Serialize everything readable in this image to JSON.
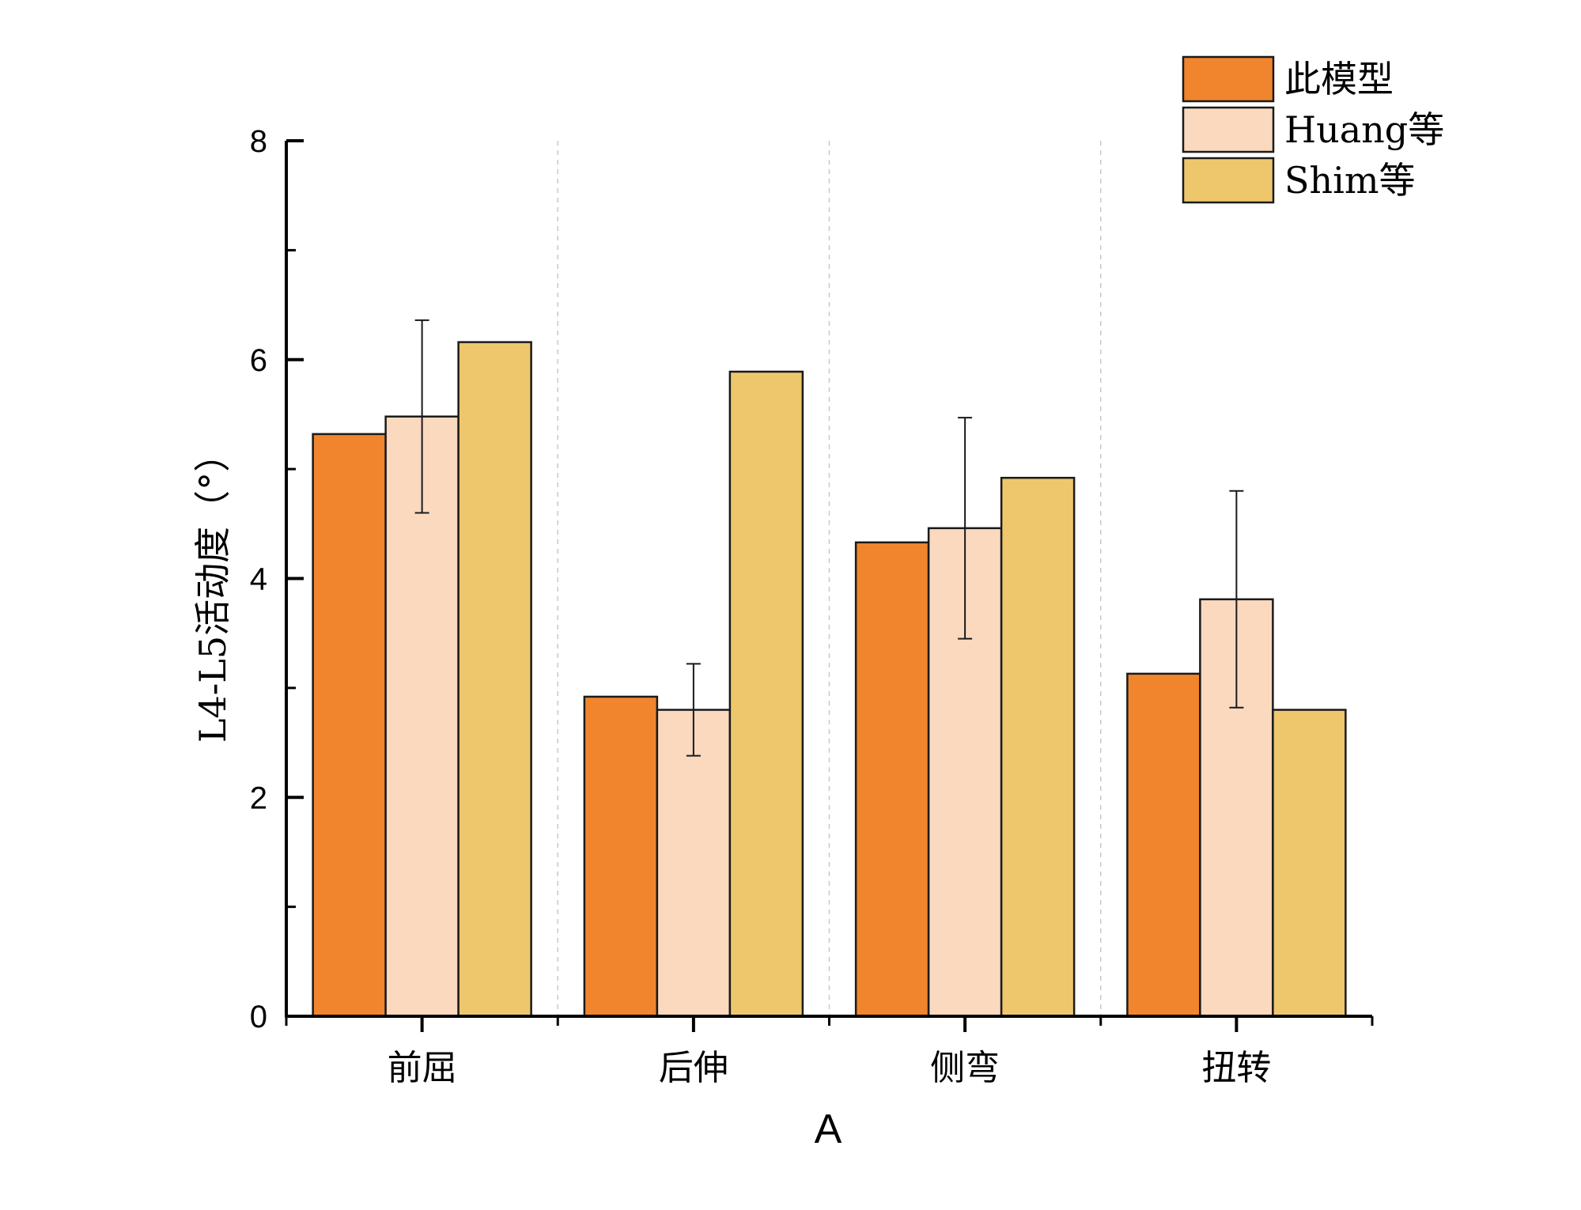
{
  "chart_data": {
    "type": "bar",
    "title": "",
    "xlabel": "A",
    "ylabel": "L4-L5活动度（°）",
    "ylim": [
      0,
      8
    ],
    "yticks": [
      0,
      2,
      4,
      6,
      8
    ],
    "categories": [
      "前屈",
      "后伸",
      "侧弯",
      "扭转"
    ],
    "legend_position": "top-right",
    "grid": false,
    "separators": "dashed vertical lines between category groups",
    "series": [
      {
        "name": "此模型",
        "color": "#F0852D",
        "values": [
          5.32,
          2.92,
          4.33,
          3.13
        ],
        "errors": null
      },
      {
        "name": "Huang等",
        "color": "#FAD9BF",
        "values": [
          5.48,
          2.8,
          4.46,
          3.81
        ],
        "errors": [
          0.88,
          0.42,
          1.01,
          0.99
        ]
      },
      {
        "name": "Shim等",
        "color": "#EEC76D",
        "values": [
          6.16,
          5.89,
          4.92,
          2.8
        ],
        "errors": null
      }
    ]
  }
}
